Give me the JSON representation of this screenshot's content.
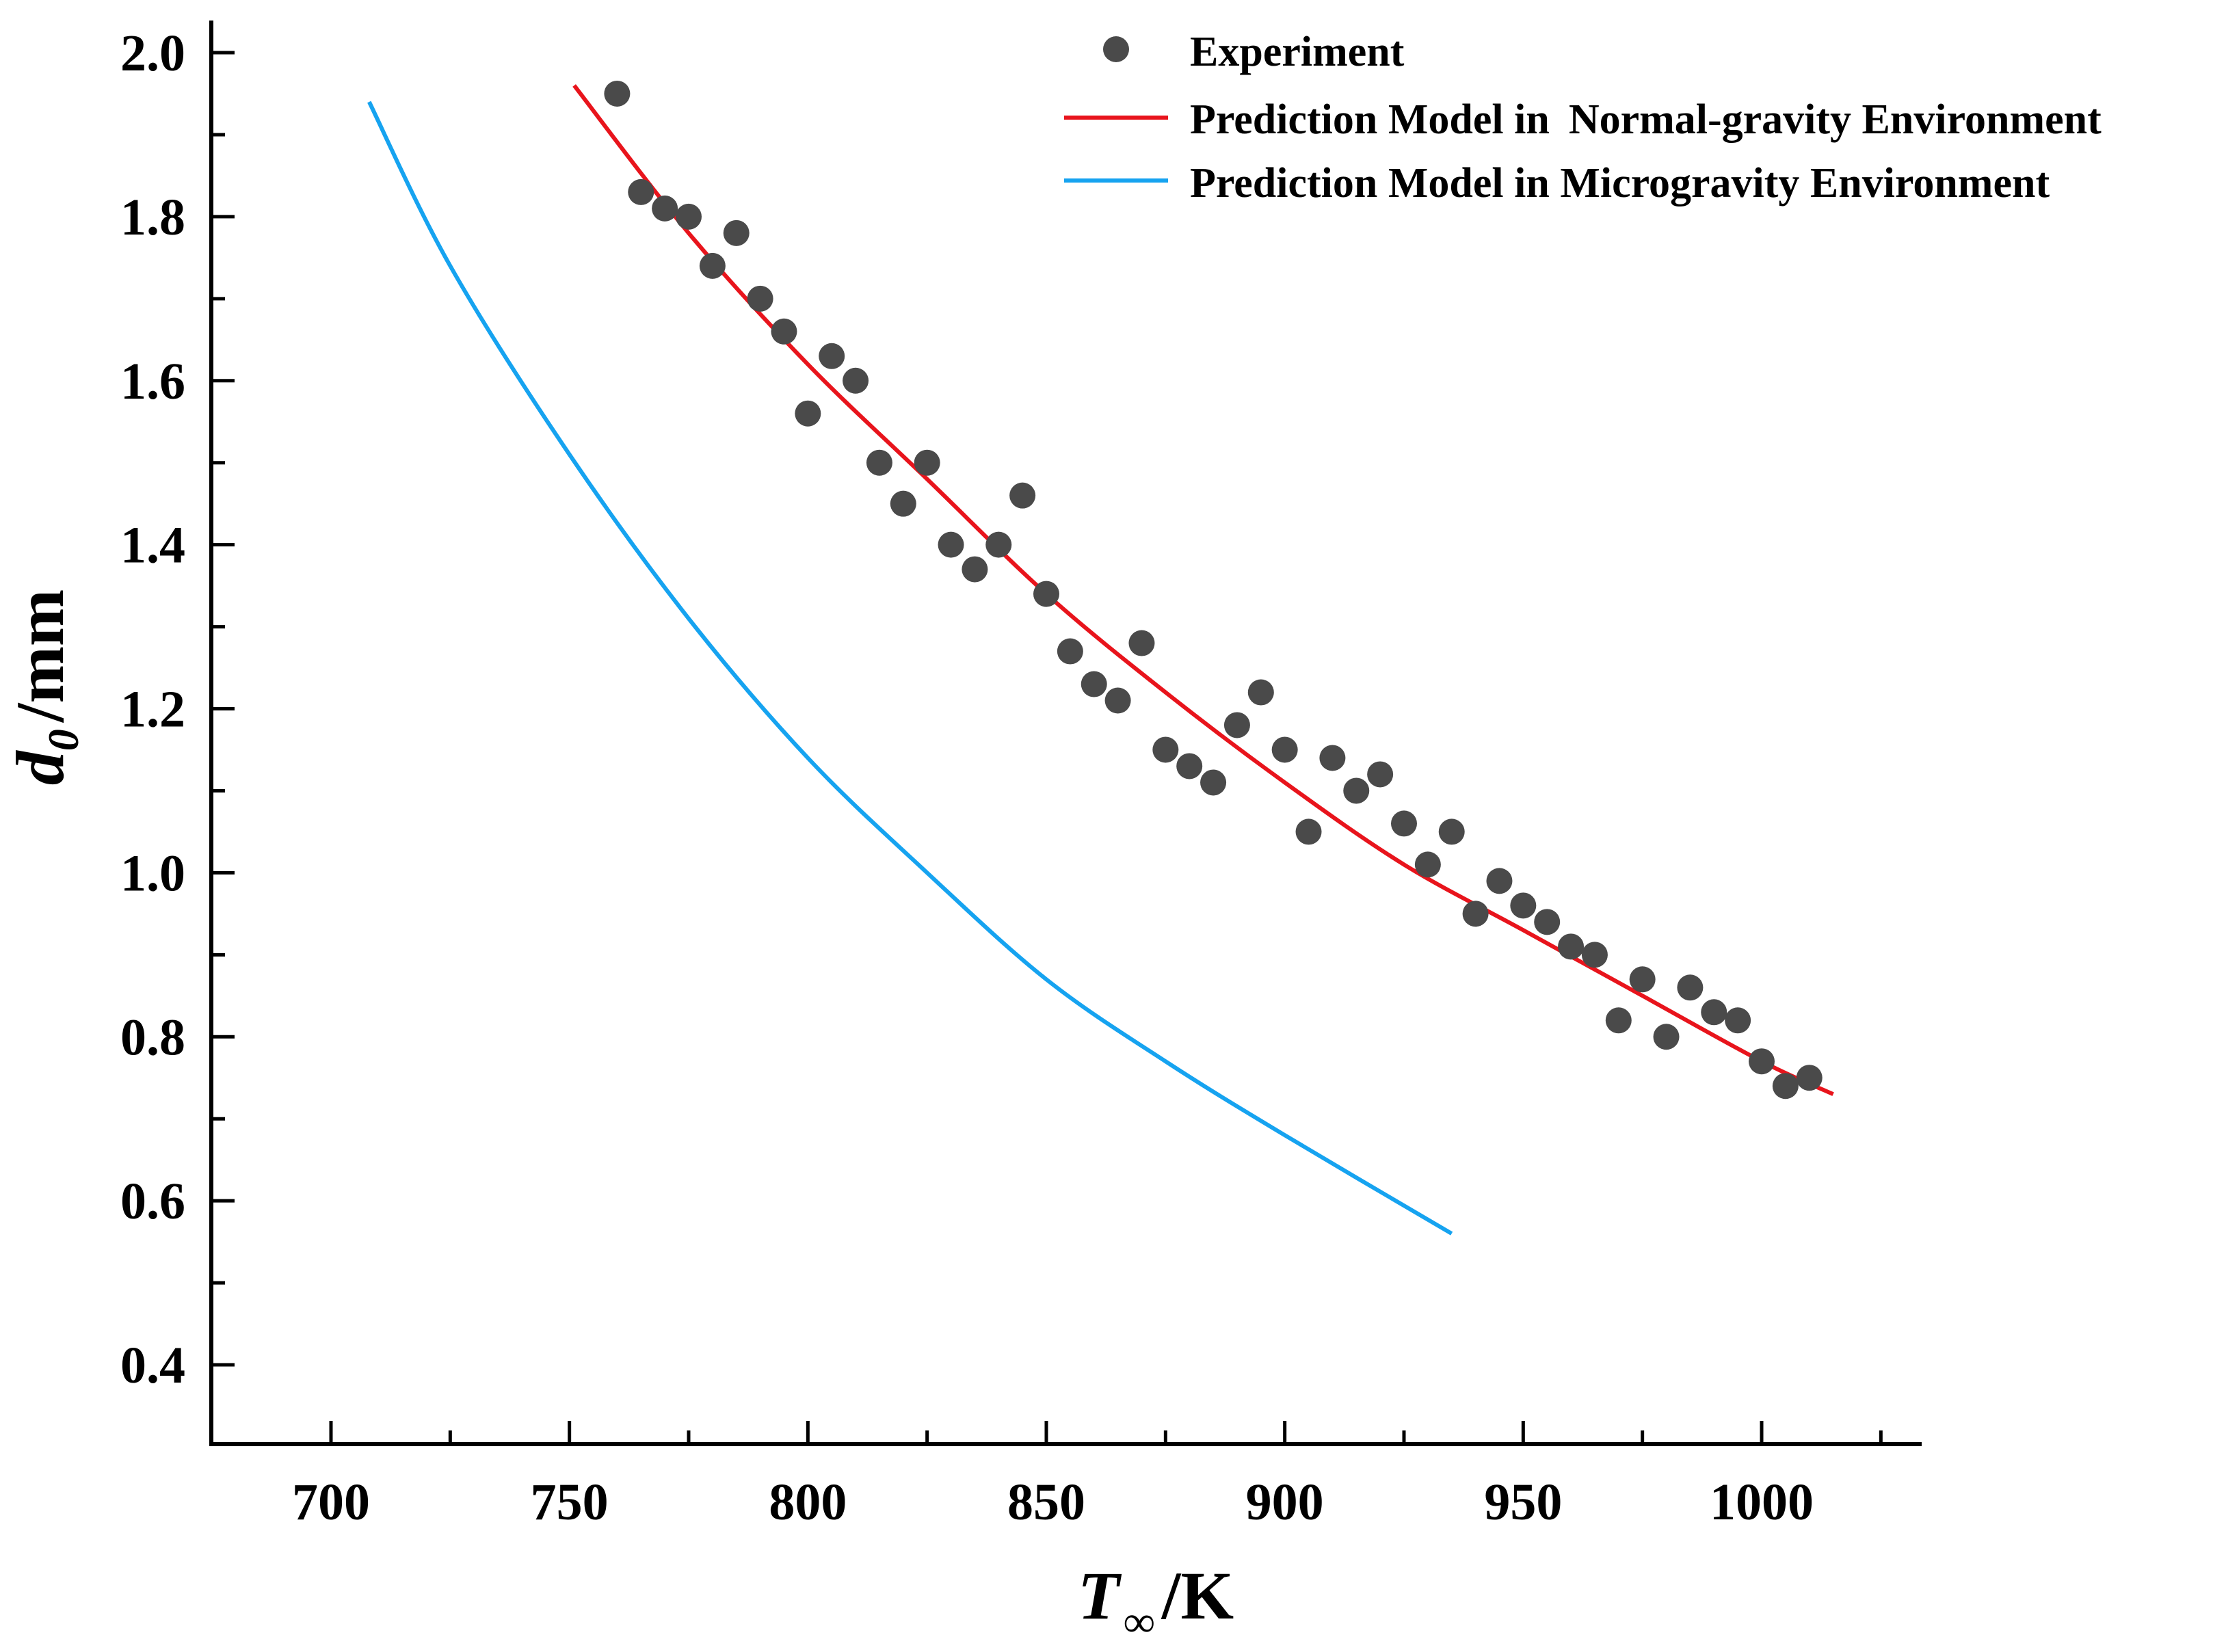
{
  "chart_data": {
    "type": "scatter",
    "title": "",
    "xlabel": {
      "main": "T",
      "subscript": "∞",
      "unit": "/K"
    },
    "ylabel": {
      "main": "d",
      "subscript": "0",
      "unit": "/mm"
    },
    "xlim": [
      675,
      1035
    ],
    "ylim": [
      0.3,
      2.04
    ],
    "x_ticks": [
      700,
      750,
      800,
      850,
      900,
      950,
      1000
    ],
    "x_tick_labels": [
      "700",
      "750",
      "800",
      "850",
      "900",
      "950",
      "1000"
    ],
    "x_minor_ticks": [
      725,
      775,
      825,
      875,
      925,
      975,
      1025
    ],
    "y_ticks": [
      0.4,
      0.6,
      0.8,
      1.0,
      1.2,
      1.4,
      1.6,
      1.8,
      2.0
    ],
    "y_tick_labels": [
      "0.4",
      "0.6",
      "0.8",
      "1.0",
      "1.2",
      "1.4",
      "1.6",
      "1.8",
      "2.0"
    ],
    "y_minor_ticks": [
      0.5,
      0.7,
      0.9,
      1.1,
      1.3,
      1.5,
      1.7,
      1.9
    ],
    "grid": false,
    "legend_position": "top-right",
    "series": [
      {
        "name": "Experiment",
        "kind": "scatter",
        "color": "#4a4a4a",
        "x": [
          760,
          765,
          770,
          775,
          780,
          785,
          790,
          795,
          800,
          805,
          810,
          815,
          820,
          825,
          830,
          835,
          840,
          845,
          850,
          855,
          860,
          865,
          870,
          875,
          880,
          885,
          890,
          895,
          900,
          905,
          910,
          915,
          920,
          925,
          930,
          935,
          940,
          945,
          950,
          955,
          960,
          965,
          970,
          975,
          980,
          985,
          990,
          995,
          1000,
          1005,
          1010
        ],
        "y": [
          1.95,
          1.83,
          1.81,
          1.8,
          1.74,
          1.78,
          1.7,
          1.66,
          1.56,
          1.63,
          1.6,
          1.5,
          1.45,
          1.5,
          1.4,
          1.37,
          1.4,
          1.46,
          1.34,
          1.27,
          1.23,
          1.21,
          1.28,
          1.15,
          1.13,
          1.11,
          1.18,
          1.22,
          1.15,
          1.05,
          1.14,
          1.1,
          1.12,
          1.06,
          1.01,
          1.05,
          0.95,
          0.99,
          0.96,
          0.94,
          0.91,
          0.9,
          0.82,
          0.87,
          0.8,
          0.86,
          0.83,
          0.82,
          0.77,
          0.74,
          0.75
        ]
      },
      {
        "name": "Prediction Model in Normal-gravity Environment",
        "legend_parts": [
          "Prediction Model in",
          "Normal-gravity Environment"
        ],
        "kind": "line",
        "color": "#e8141c",
        "x": [
          751,
          775,
          800,
          825,
          850,
          875,
          900,
          925,
          950,
          975,
          1000,
          1015
        ],
        "y": [
          1.96,
          1.78,
          1.62,
          1.48,
          1.34,
          1.22,
          1.11,
          1.01,
          0.93,
          0.85,
          0.77,
          0.73
        ]
      },
      {
        "name": "Prediction Model in Microgravity Environment",
        "kind": "line",
        "color": "#16a3f0",
        "x": [
          708,
          725,
          750,
          775,
          800,
          825,
          850,
          875,
          900,
          935
        ],
        "y": [
          1.94,
          1.74,
          1.51,
          1.31,
          1.14,
          1.0,
          0.87,
          0.77,
          0.68,
          0.56
        ]
      }
    ]
  }
}
